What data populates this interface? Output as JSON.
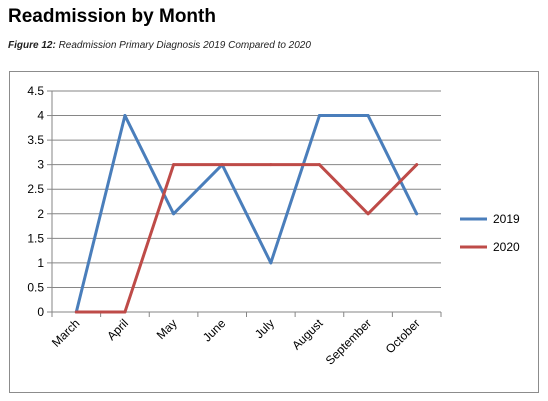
{
  "header": {
    "title": "Readmission by Month",
    "caption_label": "Figure 12:",
    "caption_text": "Readmission Primary Diagnosis 2019 Compared to 2020"
  },
  "chart_data": {
    "type": "line",
    "title": "",
    "xlabel": "",
    "ylabel": "",
    "categories": [
      "March",
      "April",
      "May",
      "June",
      "July",
      "August",
      "September",
      "October"
    ],
    "ylim": [
      0,
      4.5
    ],
    "yticks": [
      "0",
      "0.5",
      "1",
      "1.5",
      "2",
      "2.5",
      "3",
      "3.5",
      "4",
      "4.5"
    ],
    "grid": true,
    "legend": "right",
    "series": [
      {
        "name": "2019",
        "color": "#4a7ebb",
        "values": [
          0,
          4,
          2,
          3,
          1,
          4,
          4,
          2
        ]
      },
      {
        "name": "2020",
        "color": "#be4b48",
        "values": [
          0,
          0,
          3,
          3,
          3,
          3,
          2,
          3
        ]
      }
    ]
  }
}
